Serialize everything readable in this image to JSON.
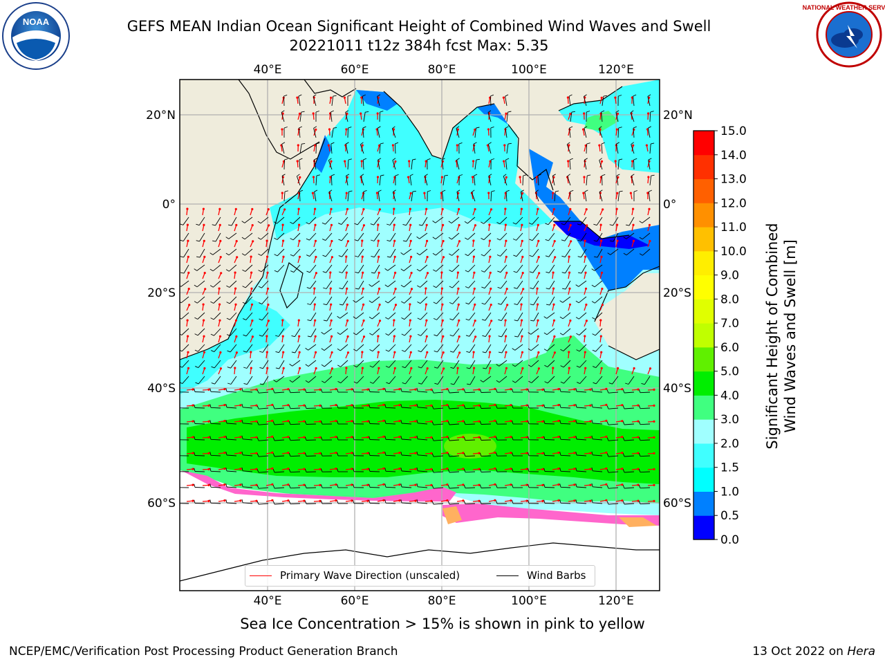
{
  "title": {
    "line1": "GEFS MEAN Indian Ocean Significant Height of Combined Wind Waves and Swell",
    "line2": "20221011 t12z 384h fcst   Max: 5.35"
  },
  "logos": {
    "noaa": {
      "text": "NOAA",
      "ring_text": "NATIONAL OCEANIC AND ATMOSPHERIC ADMINISTRATION · U.S. DEPARTMENT OF COMMERCE"
    },
    "nws": {
      "ring_text": "NATIONAL WEATHER SERVICE"
    }
  },
  "map": {
    "lon_ticks_top": [
      "40°E",
      "60°E",
      "80°E",
      "100°E",
      "120°E"
    ],
    "lon_ticks_bottom": [
      "40°E",
      "60°E",
      "80°E",
      "100°E",
      "120°E"
    ],
    "lat_ticks_left": [
      "20°N",
      "0°",
      "20°S",
      "40°S",
      "60°S"
    ],
    "lat_ticks_right": [
      "20°N",
      "0°",
      "20°S",
      "40°S",
      "60°S"
    ],
    "lon_values": [
      40,
      60,
      80,
      100,
      120
    ],
    "lat_values": [
      20,
      0,
      -20,
      -40,
      -60
    ],
    "lon_range": [
      20,
      130
    ],
    "lat_range": [
      -75,
      27
    ],
    "max_value": 5.35,
    "land_color": "#efecdc",
    "ocean_colors": {
      "low": "#00ffff",
      "mid": "#a0ffff",
      "high": "#40ff80",
      "peak": "#00ee00"
    }
  },
  "colorbar": {
    "label": "Significant Height of Combined Wind Waves and Swell [m]",
    "label_line1": "Significant Height of Combined",
    "label_line2": "Wind Waves and Swell [m]",
    "tick_labels": [
      "15.0",
      "14.0",
      "13.0",
      "12.0",
      "11.0",
      "10.0",
      "9.0",
      "8.0",
      "7.0",
      "6.0",
      "5.0",
      "4.0",
      "3.0",
      "2.0",
      "1.5",
      "1.0",
      "0.5",
      "0.0"
    ],
    "bins": [
      {
        "from": 0.0,
        "to": 0.5,
        "color": "#0000ff"
      },
      {
        "from": 0.5,
        "to": 1.0,
        "color": "#0080ff"
      },
      {
        "from": 1.0,
        "to": 1.5,
        "color": "#00ffff"
      },
      {
        "from": 1.5,
        "to": 2.0,
        "color": "#40ffff"
      },
      {
        "from": 2.0,
        "to": 3.0,
        "color": "#a0ffff"
      },
      {
        "from": 3.0,
        "to": 4.0,
        "color": "#40ff80"
      },
      {
        "from": 4.0,
        "to": 5.0,
        "color": "#00ee00"
      },
      {
        "from": 5.0,
        "to": 6.0,
        "color": "#60f000"
      },
      {
        "from": 6.0,
        "to": 7.0,
        "color": "#c0ff00"
      },
      {
        "from": 7.0,
        "to": 8.0,
        "color": "#e0ff00"
      },
      {
        "from": 8.0,
        "to": 9.0,
        "color": "#ffff00"
      },
      {
        "from": 9.0,
        "to": 10.0,
        "color": "#ffee00"
      },
      {
        "from": 10.0,
        "to": 11.0,
        "color": "#ffc000"
      },
      {
        "from": 11.0,
        "to": 12.0,
        "color": "#ff9000"
      },
      {
        "from": 12.0,
        "to": 13.0,
        "color": "#ff6000"
      },
      {
        "from": 13.0,
        "to": 14.0,
        "color": "#ff3000"
      },
      {
        "from": 14.0,
        "to": 15.0,
        "color": "#ff0000"
      }
    ]
  },
  "legend": {
    "primary_wave": "Primary Wave Direction (unscaled)",
    "wind_barbs": "Wind Barbs",
    "primary_wave_color": "#ff0000",
    "wind_barbs_color": "#000000"
  },
  "caption": "Sea Ice Concentration > 15% is shown in pink to yellow",
  "footer": {
    "left": "NCEP/EMC/Verification Post Processing Product Generation Branch",
    "right_date": "13 Oct 2022 on ",
    "right_host": "Hera"
  }
}
